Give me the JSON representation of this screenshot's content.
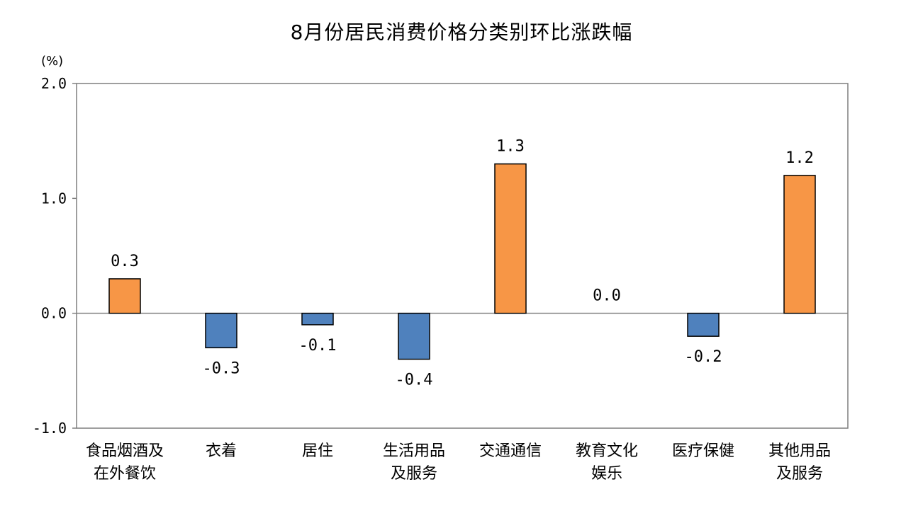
{
  "chart_data": {
    "type": "bar",
    "title": "8月份居民消费价格分类别环比涨跌幅",
    "unit_label": "(%)",
    "categories": [
      [
        "食品烟酒及",
        "在外餐饮"
      ],
      [
        "衣着"
      ],
      [
        "居住"
      ],
      [
        "生活用品",
        "及服务"
      ],
      [
        "交通通信"
      ],
      [
        "教育文化",
        "娱乐"
      ],
      [
        "医疗保健"
      ],
      [
        "其他用品",
        "及服务"
      ]
    ],
    "values": [
      0.3,
      -0.3,
      -0.1,
      -0.4,
      1.3,
      0.0,
      -0.2,
      1.2
    ],
    "data_labels": [
      "0.3",
      "-0.3",
      "-0.1",
      "-0.4",
      "1.3",
      "0.0",
      "-0.2",
      "1.2"
    ],
    "ylim": [
      -1.0,
      2.0
    ],
    "yticks": [
      2.0,
      1.0,
      0.0,
      -1.0
    ],
    "ytick_labels": [
      "2.0",
      "1.0",
      "0.0",
      "-1.0"
    ],
    "grid": false,
    "colors": {
      "positive": "#F79646",
      "negative": "#4F81BD",
      "bar_edge": "#000000",
      "frame": "#7F7F7F",
      "zero_line": "#7F7F7F"
    }
  }
}
